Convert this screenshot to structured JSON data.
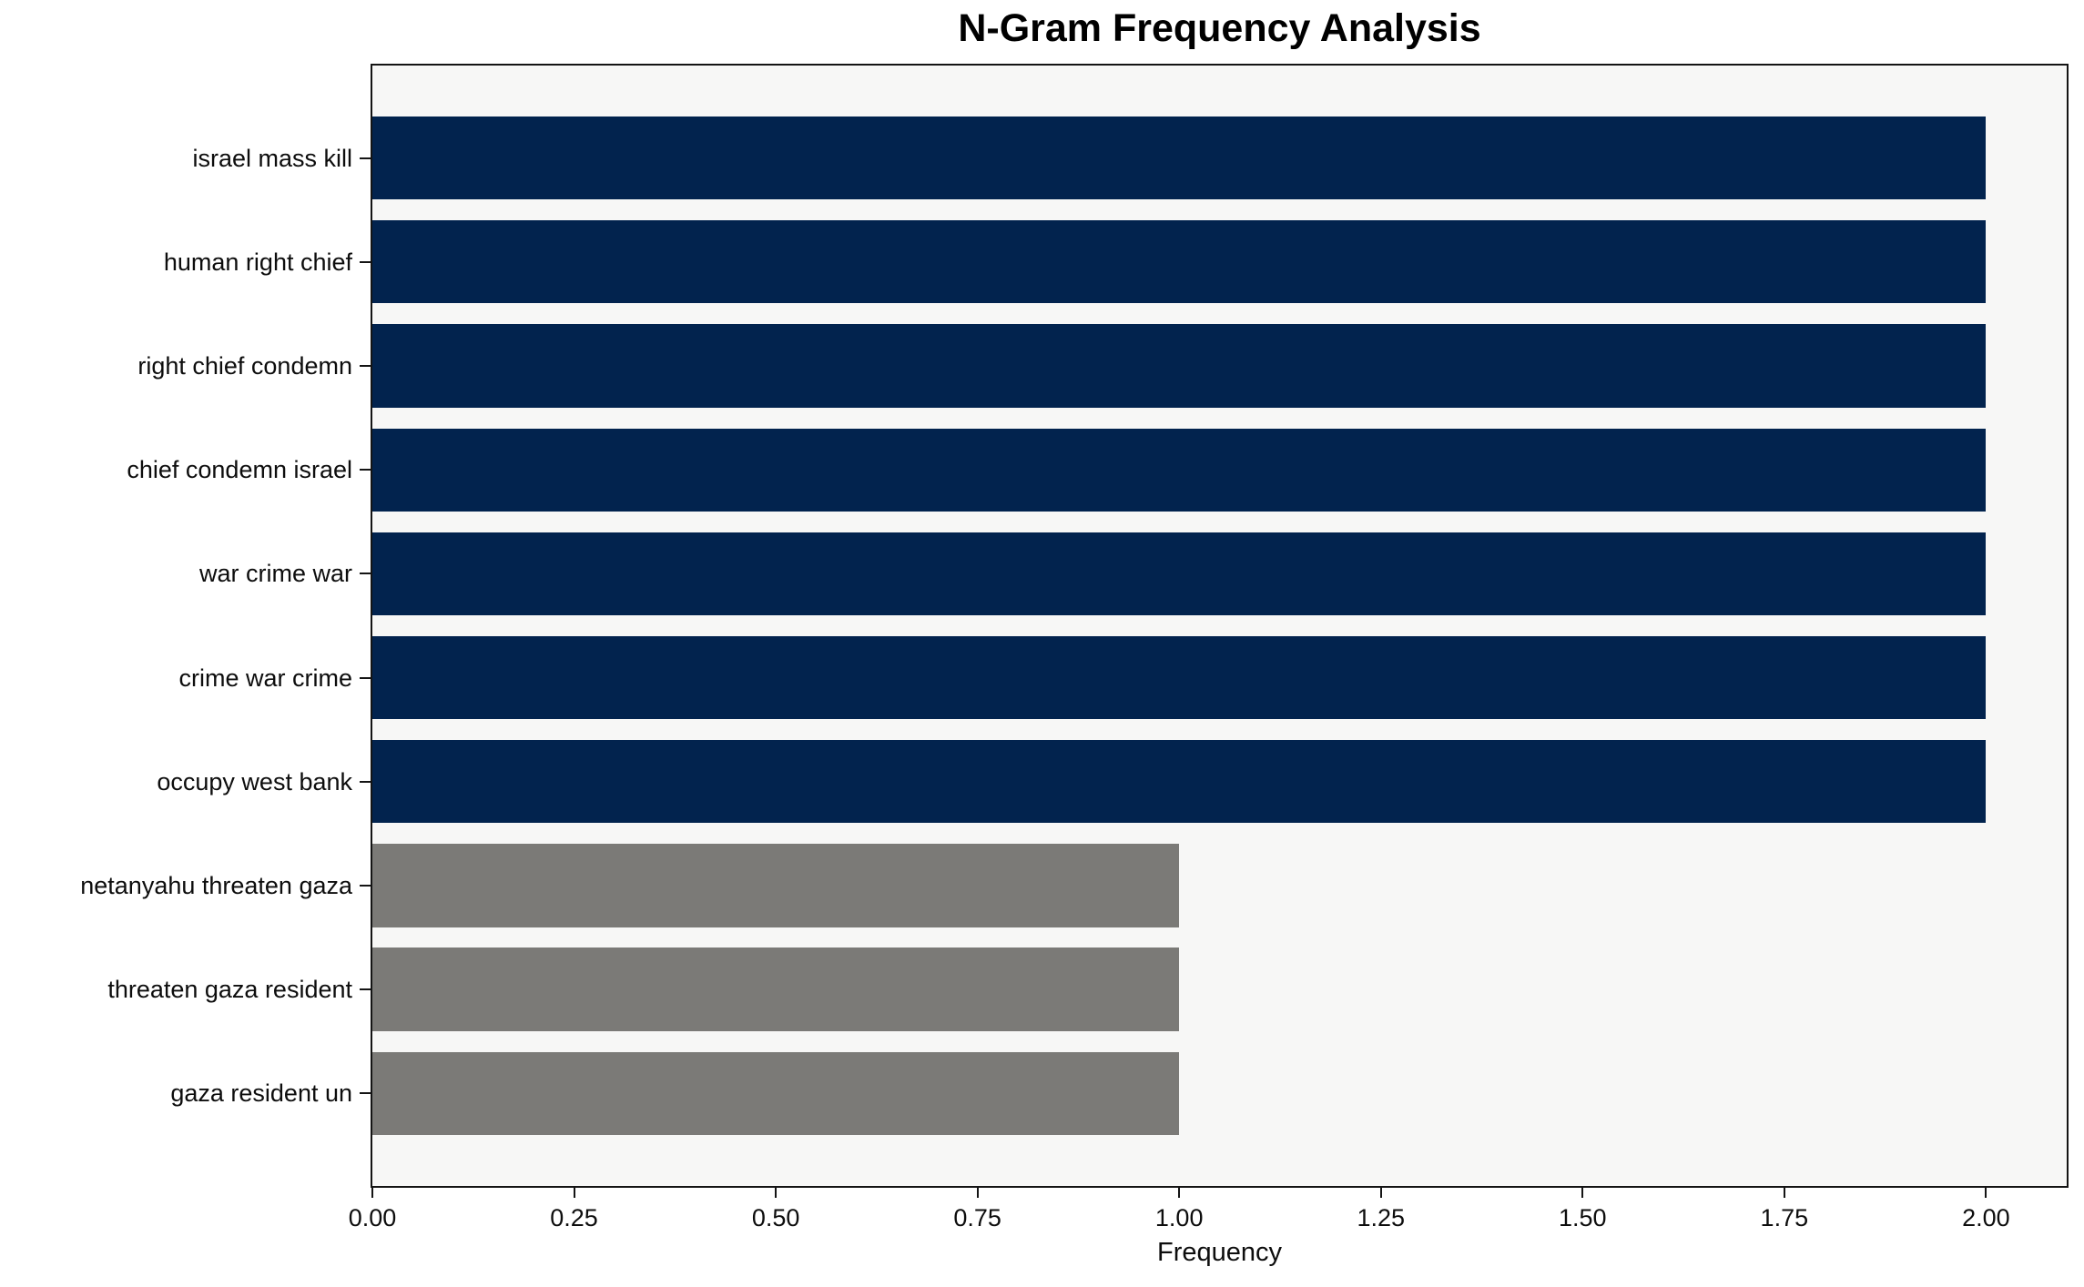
{
  "chart_data": {
    "type": "bar",
    "orientation": "horizontal",
    "title": "N-Gram Frequency Analysis",
    "xlabel": "Frequency",
    "ylabel": "",
    "categories": [
      "israel mass kill",
      "human right chief",
      "right chief condemn",
      "chief condemn israel",
      "war crime war",
      "crime war crime",
      "occupy west bank",
      "netanyahu threaten gaza",
      "threaten gaza resident",
      "gaza resident un"
    ],
    "values": [
      2,
      2,
      2,
      2,
      2,
      2,
      2,
      1,
      1,
      1
    ],
    "bar_colors": [
      "#02234E",
      "#02234E",
      "#02234E",
      "#02234E",
      "#02234E",
      "#02234E",
      "#02234E",
      "#7B7A77",
      "#7B7A77",
      "#7B7A77"
    ],
    "xlim": [
      0,
      2.1
    ],
    "xticks": [
      0.0,
      0.25,
      0.5,
      0.75,
      1.0,
      1.25,
      1.5,
      1.75,
      2.0
    ],
    "xtick_labels": [
      "0.00",
      "0.25",
      "0.50",
      "0.75",
      "1.00",
      "1.25",
      "1.50",
      "1.75",
      "2.00"
    ],
    "grid": false,
    "legend": false,
    "colors": {
      "primary_bar": "#02234E",
      "secondary_bar": "#7B7A77",
      "plot_background": "#F7F7F6",
      "figure_background": "#FFFFFF",
      "spine": "#141414",
      "text": "#0D0D0D"
    }
  }
}
